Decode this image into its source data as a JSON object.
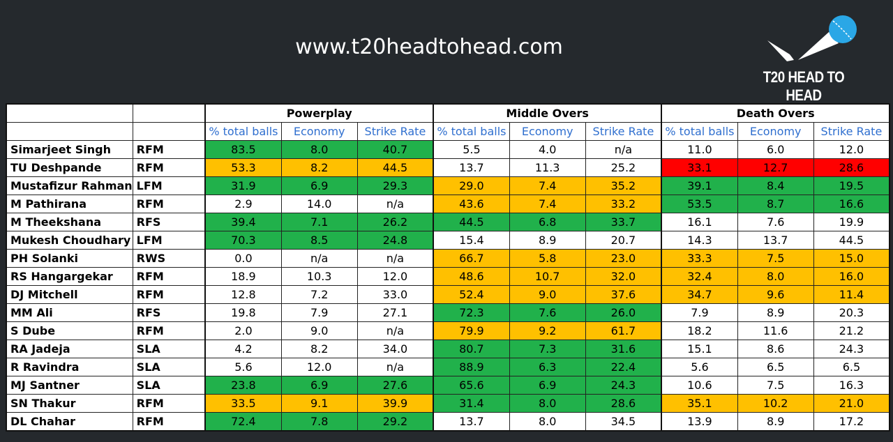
{
  "header": {
    "site": "www.t20headtohead.com",
    "logo_text": "T20 HEAD TO HEAD"
  },
  "table": {
    "groups": [
      {
        "title": "Powerplay",
        "columns": [
          "% total balls",
          "Economy",
          "Strike Rate"
        ]
      },
      {
        "title": "Middle Overs",
        "columns": [
          "% total balls",
          "Economy",
          "Strike Rate"
        ]
      },
      {
        "title": "Death Overs",
        "columns": [
          "% total balls",
          "Economy",
          "Strike Rate"
        ]
      }
    ],
    "rows": [
      {
        "name": "Simarjeet Singh",
        "type": "RFM",
        "cells": [
          "83.5",
          "8.0",
          "40.7",
          "5.5",
          "4.0",
          "n/a",
          "11.0",
          "6.0",
          "12.0"
        ],
        "fills": [
          "#21b14b",
          "#21b14b",
          "#21b14b",
          null,
          null,
          null,
          null,
          null,
          null
        ]
      },
      {
        "name": "TU Deshpande",
        "type": "RFM",
        "cells": [
          "53.3",
          "8.2",
          "44.5",
          "13.7",
          "11.3",
          "25.2",
          "33.1",
          "12.7",
          "28.6"
        ],
        "fills": [
          "#ffc000",
          "#ffc000",
          "#ffc000",
          null,
          null,
          null,
          "#ff0000",
          "#ff0000",
          "#ff0000"
        ]
      },
      {
        "name": "Mustafizur Rahman",
        "type": "LFM",
        "cells": [
          "31.9",
          "6.9",
          "29.3",
          "29.0",
          "7.4",
          "35.2",
          "39.1",
          "8.4",
          "19.5"
        ],
        "fills": [
          "#21b14b",
          "#21b14b",
          "#21b14b",
          "#ffc000",
          "#ffc000",
          "#ffc000",
          "#21b14b",
          "#21b14b",
          "#21b14b"
        ]
      },
      {
        "name": "M Pathirana",
        "type": "RFM",
        "cells": [
          "2.9",
          "14.0",
          "n/a",
          "43.6",
          "7.4",
          "33.2",
          "53.5",
          "8.7",
          "16.6"
        ],
        "fills": [
          null,
          null,
          null,
          "#ffc000",
          "#ffc000",
          "#ffc000",
          "#21b14b",
          "#21b14b",
          "#21b14b"
        ]
      },
      {
        "name": "M Theekshana",
        "type": "RFS",
        "cells": [
          "39.4",
          "7.1",
          "26.2",
          "44.5",
          "6.8",
          "33.7",
          "16.1",
          "7.6",
          "19.9"
        ],
        "fills": [
          "#21b14b",
          "#21b14b",
          "#21b14b",
          "#21b14b",
          "#21b14b",
          "#21b14b",
          null,
          null,
          null
        ]
      },
      {
        "name": "Mukesh Choudhary",
        "type": "LFM",
        "cells": [
          "70.3",
          "8.5",
          "24.8",
          "15.4",
          "8.9",
          "20.7",
          "14.3",
          "13.7",
          "44.5"
        ],
        "fills": [
          "#21b14b",
          "#21b14b",
          "#21b14b",
          null,
          null,
          null,
          null,
          null,
          null
        ]
      },
      {
        "name": "PH Solanki",
        "type": "RWS",
        "cells": [
          "0.0",
          "n/a",
          "n/a",
          "66.7",
          "5.8",
          "23.0",
          "33.3",
          "7.5",
          "15.0"
        ],
        "fills": [
          null,
          null,
          null,
          "#ffc000",
          "#ffc000",
          "#ffc000",
          "#ffc000",
          "#ffc000",
          "#ffc000"
        ]
      },
      {
        "name": "RS Hangargekar",
        "type": "RFM",
        "cells": [
          "18.9",
          "10.3",
          "12.0",
          "48.6",
          "10.7",
          "32.0",
          "32.4",
          "8.0",
          "16.0"
        ],
        "fills": [
          null,
          null,
          null,
          "#ffc000",
          "#ffc000",
          "#ffc000",
          "#ffc000",
          "#ffc000",
          "#ffc000"
        ]
      },
      {
        "name": "DJ Mitchell",
        "type": "RFM",
        "cells": [
          "12.8",
          "7.2",
          "33.0",
          "52.4",
          "9.0",
          "37.6",
          "34.7",
          "9.6",
          "11.4"
        ],
        "fills": [
          null,
          null,
          null,
          "#ffc000",
          "#ffc000",
          "#ffc000",
          "#ffc000",
          "#ffc000",
          "#ffc000"
        ]
      },
      {
        "name": "MM Ali",
        "type": "RFS",
        "cells": [
          "19.8",
          "7.9",
          "27.1",
          "72.3",
          "7.6",
          "26.0",
          "7.9",
          "8.9",
          "20.3"
        ],
        "fills": [
          null,
          null,
          null,
          "#21b14b",
          "#21b14b",
          "#21b14b",
          null,
          null,
          null
        ]
      },
      {
        "name": "S Dube",
        "type": "RFM",
        "cells": [
          "2.0",
          "9.0",
          "n/a",
          "79.9",
          "9.2",
          "61.7",
          "18.2",
          "11.6",
          "21.2"
        ],
        "fills": [
          null,
          null,
          null,
          "#ffc000",
          "#ffc000",
          "#ffc000",
          null,
          null,
          null
        ]
      },
      {
        "name": "RA Jadeja",
        "type": "SLA",
        "cells": [
          "4.2",
          "8.2",
          "34.0",
          "80.7",
          "7.3",
          "31.6",
          "15.1",
          "8.6",
          "24.3"
        ],
        "fills": [
          null,
          null,
          null,
          "#21b14b",
          "#21b14b",
          "#21b14b",
          null,
          null,
          null
        ]
      },
      {
        "name": "R Ravindra",
        "type": "SLA",
        "cells": [
          "5.6",
          "12.0",
          "n/a",
          "88.9",
          "6.3",
          "22.4",
          "5.6",
          "6.5",
          "6.5"
        ],
        "fills": [
          null,
          null,
          null,
          "#21b14b",
          "#21b14b",
          "#21b14b",
          null,
          null,
          null
        ]
      },
      {
        "name": "MJ Santner",
        "type": "SLA",
        "cells": [
          "23.8",
          "6.9",
          "27.6",
          "65.6",
          "6.9",
          "24.3",
          "10.6",
          "7.5",
          "16.3"
        ],
        "fills": [
          "#21b14b",
          "#21b14b",
          "#21b14b",
          "#21b14b",
          "#21b14b",
          "#21b14b",
          null,
          null,
          null
        ]
      },
      {
        "name": "SN Thakur",
        "type": "RFM",
        "cells": [
          "33.5",
          "9.1",
          "39.9",
          "31.4",
          "8.0",
          "28.6",
          "35.1",
          "10.2",
          "21.0"
        ],
        "fills": [
          "#ffc000",
          "#ffc000",
          "#ffc000",
          "#21b14b",
          "#21b14b",
          "#21b14b",
          "#ffc000",
          "#ffc000",
          "#ffc000"
        ]
      },
      {
        "name": "DL Chahar",
        "type": "RFM",
        "cells": [
          "72.4",
          "7.8",
          "29.2",
          "13.7",
          "8.0",
          "34.5",
          "13.9",
          "8.9",
          "17.2"
        ],
        "fills": [
          "#21b14b",
          "#21b14b",
          "#21b14b",
          null,
          null,
          null,
          null,
          null,
          null
        ]
      }
    ]
  }
}
